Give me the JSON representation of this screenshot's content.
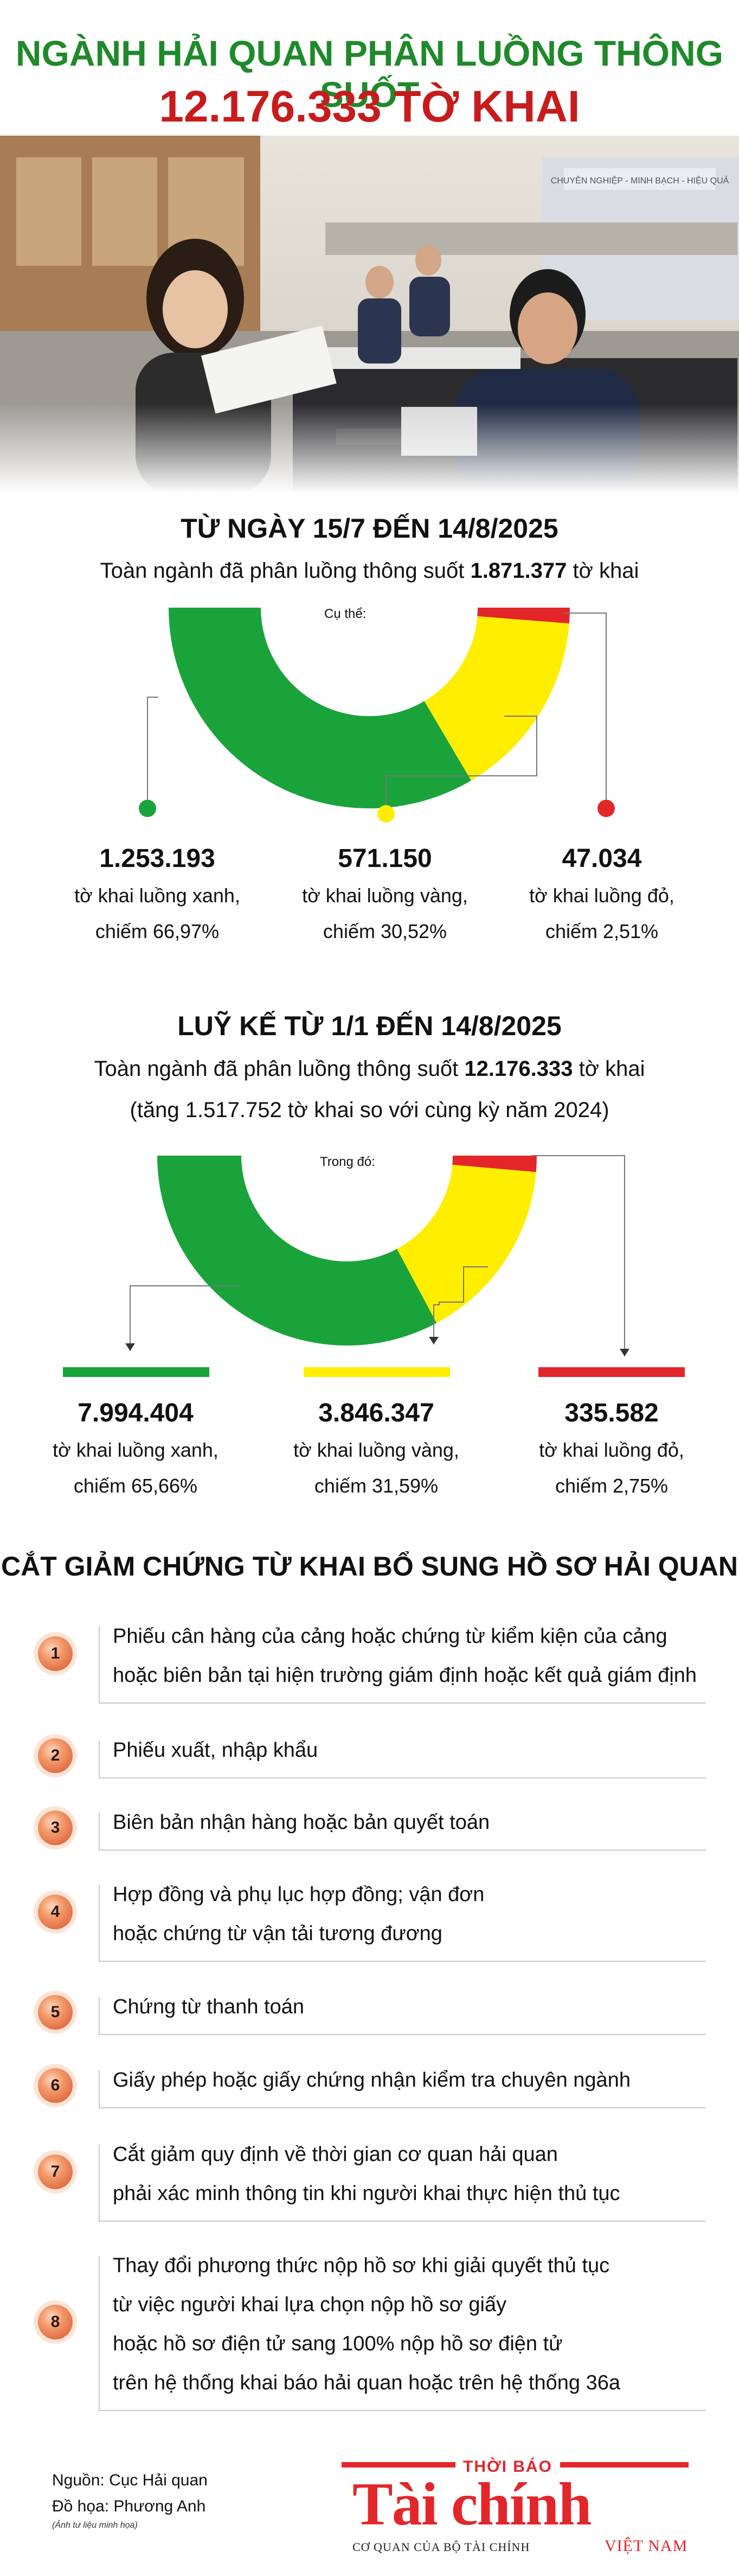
{
  "header": {
    "title_line1": "NGÀNH HẢI QUAN PHÂN LUỒNG THÔNG SUỐT",
    "title_line2": "12.176.333 TỜ KHAI",
    "photo_signs": [
      "CHUYÊN NGHIỆP - MINH BẠCH - HIỆU QUẢ"
    ]
  },
  "section1": {
    "title": "TỪ NGÀY 15/7 ĐẾN 14/8/2025",
    "summary_prefix": "Toàn ngành đã phân luồng thông suốt ",
    "summary_value": "1.871.377",
    "summary_suffix": " tờ khai",
    "donut_label": "Cụ thể:",
    "items": [
      {
        "value": "1.253.193",
        "line1": "tờ khai luồng xanh,",
        "line2": "chiếm 66,97%",
        "percent": 66.97,
        "color": "#1aa33a"
      },
      {
        "value": "571.150",
        "line1": "tờ khai luồng vàng,",
        "line2": "chiếm 30,52%",
        "percent": 30.52,
        "color": "#ffee00"
      },
      {
        "value": "47.034",
        "line1": "tờ khai luồng đỏ,",
        "line2": "chiếm 2,51%",
        "percent": 2.51,
        "color": "#e3262a"
      }
    ]
  },
  "section2": {
    "title": "LUỸ KẾ TỪ 1/1 ĐẾN 14/8/2025",
    "summary_prefix": "Toàn ngành đã phân luồng thông suốt ",
    "summary_value": "12.176.333",
    "summary_suffix": " tờ khai",
    "summary_line2": "(tăng 1.517.752 tờ khai so với cùng kỳ năm 2024)",
    "donut_label": "Trong đó:",
    "items": [
      {
        "value": "7.994.404",
        "line1": "tờ khai luồng xanh,",
        "line2": "chiếm 65,66%",
        "percent": 65.66,
        "color": "#1aa33a"
      },
      {
        "value": "3.846.347",
        "line1": "tờ khai luồng vàng,",
        "line2": "chiếm 31,59%",
        "percent": 31.59,
        "color": "#ffee00"
      },
      {
        "value": "335.582",
        "line1": "tờ khai luồng đỏ,",
        "line2": "chiếm 2,75%",
        "percent": 2.75,
        "color": "#e3262a"
      }
    ]
  },
  "section3": {
    "title": "CẮT GIẢM CHỨNG TỪ KHAI BỔ SUNG HỒ SƠ HẢI QUAN",
    "items": [
      {
        "num": "1",
        "lines": [
          "Phiếu cân hàng của cảng hoặc chứng từ kiểm kiện của cảng",
          "hoặc biên bản tại hiện trường giám định hoặc kết quả giám định"
        ]
      },
      {
        "num": "2",
        "lines": [
          "Phiếu xuất, nhập khẩu"
        ]
      },
      {
        "num": "3",
        "lines": [
          "Biên bản nhận hàng hoặc bản quyết toán"
        ]
      },
      {
        "num": "4",
        "lines": [
          "Hợp đồng và phụ lục hợp đồng; vận đơn",
          "hoặc chứng từ vận tải tương đương"
        ]
      },
      {
        "num": "5",
        "lines": [
          "Chứng từ thanh toán"
        ]
      },
      {
        "num": "6",
        "lines": [
          "Giấy phép hoặc giấy chứng nhận kiểm tra chuyên ngành"
        ]
      },
      {
        "num": "7",
        "lines": [
          "Cắt giảm quy định về thời gian cơ quan hải quan",
          "phải xác minh thông tin khi người khai thực hiện thủ tục"
        ]
      },
      {
        "num": "8",
        "lines": [
          "Thay đổi phương thức nộp hồ sơ khi giải quyết thủ tục",
          "từ việc người khai lựa chọn nộp hồ sơ giấy",
          "hoặc hồ sơ điện tử sang 100% nộp hồ sơ điện tử",
          "trên hệ thống khai báo hải quan hoặc trên hệ thống 36a"
        ]
      }
    ]
  },
  "footer": {
    "source": "Nguồn: Cục Hải quan",
    "graphics": "Đồ họa: Phương Anh",
    "photo_note": "(Ảnh tư liệu minh họa)",
    "logo_top": "THỜI BÁO",
    "logo_main": "Tài chính",
    "logo_sub": "CƠ QUAN CỦA BỘ TÀI CHÍNH",
    "logo_country": "VIỆT NAM"
  },
  "colors": {
    "green": "#1aa33a",
    "yellow": "#ffee00",
    "red": "#e3262a",
    "title_green": "#1f8a2a",
    "title_red": "#c71c1c"
  }
}
